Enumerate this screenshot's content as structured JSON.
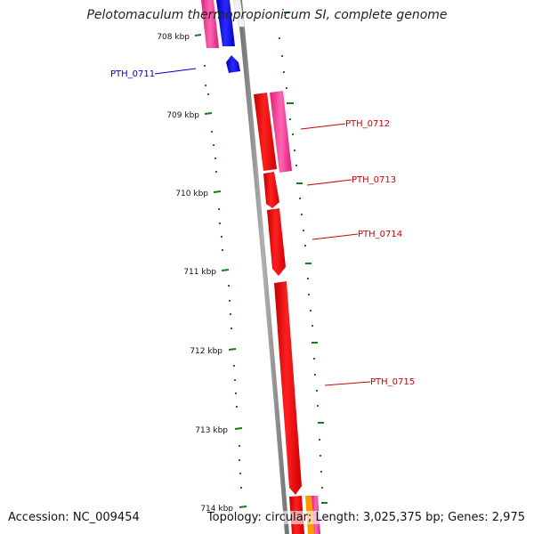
{
  "title": "Pelotomaculum thermopropionicum SI, complete genome",
  "footer": {
    "accession": "Accession: NC_009454",
    "summary": "Topology: circular; Length: 3,025,375 bp; Genes: 2,975"
  },
  "ruler": {
    "labels": [
      "708 kbp",
      "709 kbp",
      "710 kbp",
      "711 kbp",
      "712 kbp",
      "713 kbp",
      "714 kbp"
    ]
  },
  "genes": [
    {
      "label": "PTH_0711",
      "color": "#0000cc"
    },
    {
      "label": "PTH_0712",
      "color": "#cc0000"
    },
    {
      "label": "PTH_0713",
      "color": "#cc0000"
    },
    {
      "label": "PTH_0714",
      "color": "#cc0000"
    },
    {
      "label": "PTH_0715",
      "color": "#cc0000"
    }
  ],
  "colors": {
    "forward_strand": "#ff0000",
    "pink_feature": "#ff3399",
    "blue_feature": "#0000ff",
    "orange_feature": "#ff9900",
    "backbone": "#8a8a8a",
    "tick_color": "#1a7a1a"
  }
}
